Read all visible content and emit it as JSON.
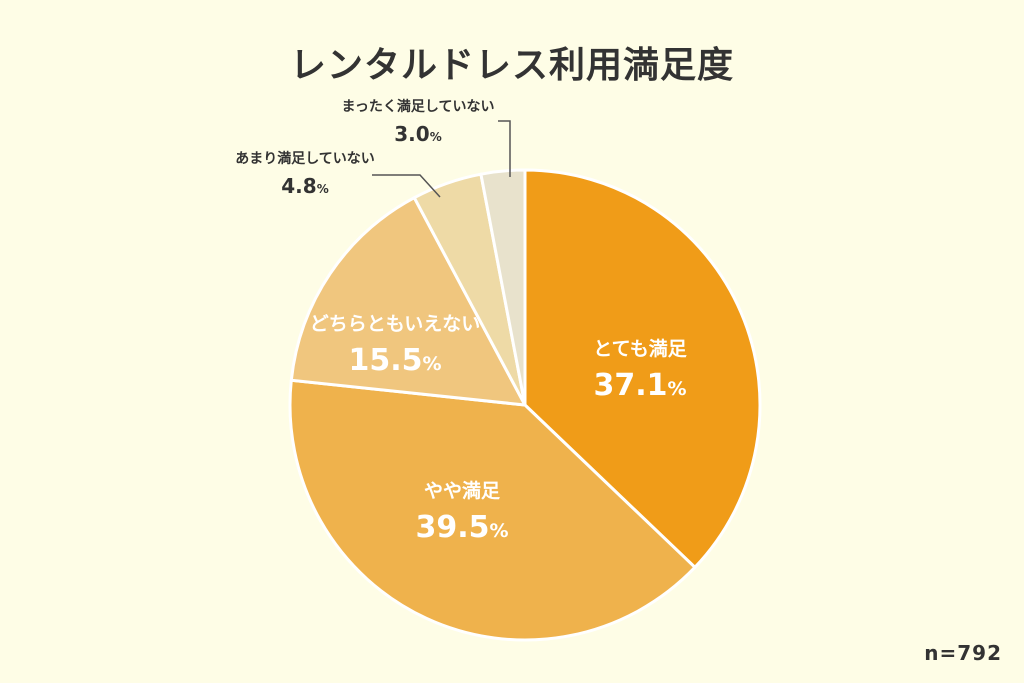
{
  "chart_data": {
    "type": "pie",
    "title": "レンタルドレス利用満足度",
    "note": "n=792",
    "start_angle_deg": 0,
    "direction": "clockwise",
    "slices": [
      {
        "label": "とても満足",
        "value": 37.1,
        "display": "37.1",
        "unit": "%",
        "color": "#f09c18",
        "label_color": "#ffffff"
      },
      {
        "label": "やや満足",
        "value": 39.5,
        "display": "39.5",
        "unit": "%",
        "color": "#efb24c",
        "label_color": "#ffffff"
      },
      {
        "label": "どちらともいえない",
        "value": 15.5,
        "display": "15.5",
        "unit": "%",
        "color": "#f0c67e",
        "label_color": "#ffffff"
      },
      {
        "label": "あまり満足していない",
        "value": 4.8,
        "display": "4.8",
        "unit": "%",
        "color": "#eedaa6",
        "label_color": "#333333"
      },
      {
        "label": "まったく満足していない",
        "value": 3.0,
        "display": "3.0",
        "unit": "%",
        "color": "#e8e2cc",
        "label_color": "#333333"
      }
    ]
  }
}
